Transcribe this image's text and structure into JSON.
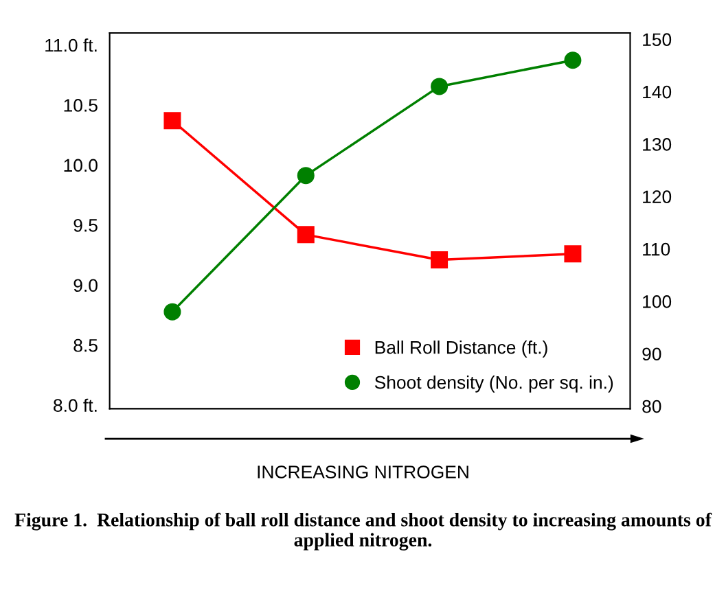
{
  "chart_data": {
    "type": "line",
    "categories": [
      null,
      null,
      null,
      null
    ],
    "series": [
      {
        "name": "Ball Roll Distance (ft.)",
        "color": "#ff0000",
        "values": [
          10.37,
          9.42,
          9.21,
          9.26
        ],
        "marker": "square"
      },
      {
        "name": "Shoot density (No. per sq. in.)",
        "color": "#008000",
        "values": [
          98,
          124,
          141,
          146
        ],
        "axis": "y2",
        "marker": "circle"
      }
    ],
    "ylim": [
      7.97,
      11.1
    ],
    "yticks": [
      {
        "value": 8.0,
        "label": "8.0 ft."
      },
      {
        "value": 8.5,
        "label": "8.5"
      },
      {
        "value": 9.0,
        "label": "9.0"
      },
      {
        "value": 9.5,
        "label": "9.5"
      },
      {
        "value": 10.0,
        "label": "10.0"
      },
      {
        "value": 10.5,
        "label": "10.5"
      },
      {
        "value": 11.0,
        "label": "11.0 ft."
      }
    ],
    "y2lim": [
      79.5,
      151.2
    ],
    "y2ticks": [
      80,
      90,
      100,
      110,
      120,
      130,
      140,
      150
    ],
    "xlabel": "INCREASING NITROGEN",
    "annotations": [
      "Figure 1.  Relationship of ball roll distance and shoot density to increasing amounts of applied nitrogen."
    ],
    "legend": "bottom right",
    "grid": false,
    "line_style": "solid"
  }
}
